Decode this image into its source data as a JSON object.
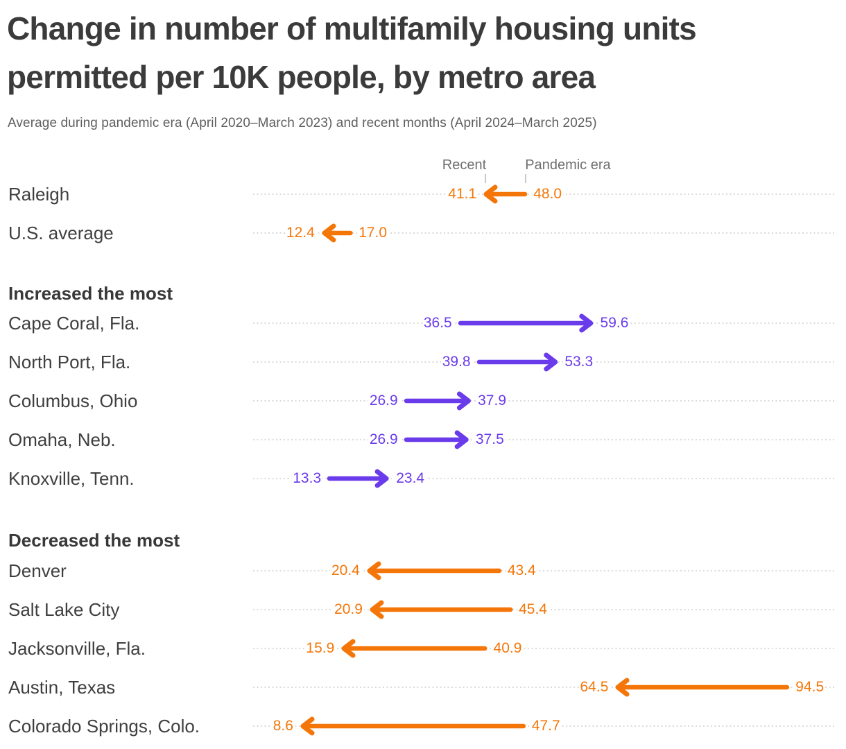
{
  "chart_data": {
    "type": "arrow",
    "title": "Change in number of multifamily housing units permitted per 10K people, by metro area",
    "subtitle": "Average during pandemic era (April 2020–March 2023) and recent months (April 2024–March 2025)",
    "legend": [
      "Recent",
      "Pandemic era"
    ],
    "legend_position": "top, anchored above first row arrow endpoints",
    "series": [
      "Pandemic era",
      "Recent"
    ],
    "xlim": [
      0,
      100
    ],
    "grid": "dotted horizontal row guides",
    "value_format": "one decimal place",
    "colors": {
      "increase": "#6a3beb",
      "decrease": "#f57608",
      "title_text": "#3b3b3b",
      "subtitle_text": "#5e5e5e",
      "legend_text": "#6f6f6f",
      "row_label_text": "#3f3f3f",
      "guide_dots": "#dadada"
    },
    "groups": [
      {
        "header": "",
        "rows": [
          {
            "label": "Raleigh",
            "pandemic": 48.0,
            "recent": 41.1
          },
          {
            "label": "U.S. average",
            "pandemic": 17.0,
            "recent": 12.4
          }
        ]
      },
      {
        "header": "Increased the most",
        "rows": [
          {
            "label": "Cape Coral, Fla.",
            "pandemic": 36.5,
            "recent": 59.6
          },
          {
            "label": "North Port, Fla.",
            "pandemic": 39.8,
            "recent": 53.3
          },
          {
            "label": "Columbus, Ohio",
            "pandemic": 26.9,
            "recent": 37.9
          },
          {
            "label": "Omaha, Neb.",
            "pandemic": 26.9,
            "recent": 37.5
          },
          {
            "label": "Knoxville, Tenn.",
            "pandemic": 13.3,
            "recent": 23.4
          }
        ]
      },
      {
        "header": "Decreased the most",
        "rows": [
          {
            "label": "Denver",
            "pandemic": 43.4,
            "recent": 20.4
          },
          {
            "label": "Salt Lake City",
            "pandemic": 45.4,
            "recent": 20.9
          },
          {
            "label": "Jacksonville, Fla.",
            "pandemic": 40.9,
            "recent": 15.9
          },
          {
            "label": "Austin, Texas",
            "pandemic": 94.5,
            "recent": 64.5
          },
          {
            "label": "Colorado Springs, Colo.",
            "pandemic": 47.7,
            "recent": 8.6
          }
        ]
      }
    ]
  }
}
